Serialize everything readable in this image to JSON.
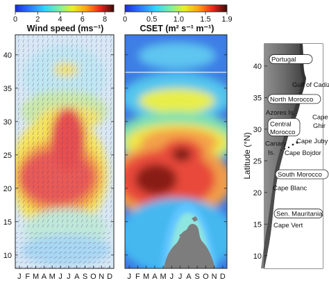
{
  "chart_data": [
    {
      "type": "heatmap",
      "title": "Wind speed (ms⁻¹)",
      "colorbar": {
        "ticks": [
          "0",
          "2",
          "4",
          "6",
          "8"
        ],
        "range": [
          0,
          8.8
        ]
      },
      "x_ticks": [
        "J",
        "F",
        "M",
        "A",
        "M",
        "J",
        "J",
        "A",
        "S",
        "O",
        "N",
        "D"
      ],
      "y_ticks": [
        "10",
        "15",
        "20",
        "25",
        "30",
        "35",
        "40"
      ],
      "ylim": [
        8,
        43
      ],
      "overlay": "wind vectors (arrows)",
      "description_bands": [
        {
          "lat": 10,
          "month_peak": "Jul",
          "value": 3
        },
        {
          "lat": 20,
          "month_peak": "Apr-Jun",
          "value": 8
        },
        {
          "lat": 30,
          "month_peak": "Jun-Jul",
          "value": 7
        },
        {
          "lat": 40,
          "month_peak": "Jul",
          "value": 5
        }
      ]
    },
    {
      "type": "heatmap",
      "title": "CSET (m² s⁻¹ m⁻¹)",
      "colorbar": {
        "ticks": [
          "0",
          "0.5",
          "1.0",
          "1.5",
          "1.9"
        ],
        "range": [
          0,
          1.9
        ]
      },
      "x_ticks": [
        "J",
        "F",
        "M",
        "A",
        "M",
        "J",
        "J",
        "A",
        "S",
        "O",
        "N",
        "D"
      ],
      "y_ticks": [
        "10",
        "15",
        "20",
        "25",
        "30",
        "35",
        "40"
      ],
      "ylim": [
        8,
        43
      ],
      "description_bands": [
        {
          "lat": 21,
          "month_peak": "Apr-May",
          "value": 1.9
        },
        {
          "lat": 26,
          "month_peak": "Jul",
          "value": 1.5
        },
        {
          "lat": 31,
          "month_peak": "Jun-Aug",
          "value": 1.0
        },
        {
          "lat": 40,
          "month_peak": "Jun-Jul",
          "value": 0.5
        }
      ]
    }
  ],
  "map": {
    "ylabel": "Latitude (°N)",
    "y_ticks": [
      "10",
      "15",
      "20",
      "25",
      "30",
      "35",
      "40"
    ],
    "labels": [
      {
        "text": "Portugal",
        "boxed": true,
        "lat": 40.8
      },
      {
        "text": "Gulf of Cadiz",
        "boxed": false,
        "lat": 36.8
      },
      {
        "text": "North Morocco",
        "boxed": true,
        "lat": 34.5
      },
      {
        "text": "Cape",
        "boxed": false,
        "lat": 31.7
      },
      {
        "text": "Ghir",
        "boxed": false,
        "lat": 30.3
      },
      {
        "text": "Azores Is.",
        "boxed": false,
        "lat": 32.4
      },
      {
        "text": "Central",
        "boxed": true,
        "lat": 30.6
      },
      {
        "text": "Morocco",
        "boxed": true,
        "lat": 29.3
      },
      {
        "text": "Canary",
        "boxed": false,
        "lat": 27.5
      },
      {
        "text": "Is.",
        "boxed": false,
        "lat": 26.1
      },
      {
        "text": "Cape Juby",
        "boxed": false,
        "lat": 27.9
      },
      {
        "text": "Cape Bojdor",
        "boxed": false,
        "lat": 26.0
      },
      {
        "text": "South Morocco",
        "boxed": true,
        "lat": 22.6
      },
      {
        "text": "Cape  Blanc",
        "boxed": false,
        "lat": 20.5
      },
      {
        "text": "Sen. Mauritania",
        "boxed": true,
        "lat": 16.4
      },
      {
        "text": "Cape Vert",
        "boxed": false,
        "lat": 14.6
      }
    ]
  }
}
